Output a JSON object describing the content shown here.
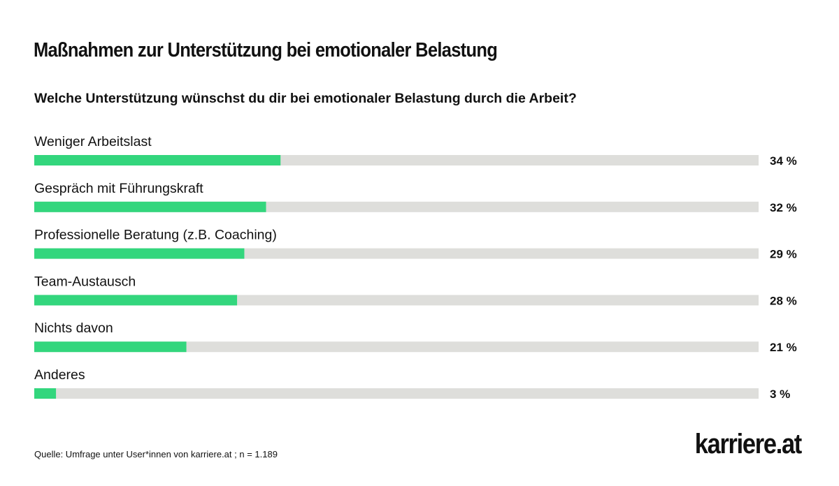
{
  "title": "Maßnahmen zur Unterstützung bei emotionaler Belastung",
  "subtitle": "Welche Unterstützung wünschst du dir bei emotionaler Belastung durch die Arbeit?",
  "source": "Quelle: Umfrage unter User*innen von karriere.at ; n = 1.189",
  "logo_text": "karriere.at",
  "colors": {
    "bar_fill": "#33d67d",
    "bar_track": "#dededb",
    "text": "#111111"
  },
  "chart_data": {
    "type": "bar",
    "orientation": "horizontal",
    "categories": [
      "Weniger Arbeitslast",
      "Gespräch mit Führungskraft",
      "Professionelle Beratung (z.B. Coaching)",
      "Team-Austausch",
      "Nichts davon",
      "Anderes"
    ],
    "values": [
      34,
      32,
      29,
      28,
      21,
      3
    ],
    "value_labels": [
      "34 %",
      "32 %",
      "29 %",
      "28 %",
      "21 %",
      "3 %"
    ],
    "xlim": [
      0,
      100
    ],
    "unit": "%",
    "grid": false,
    "legend": "none"
  }
}
